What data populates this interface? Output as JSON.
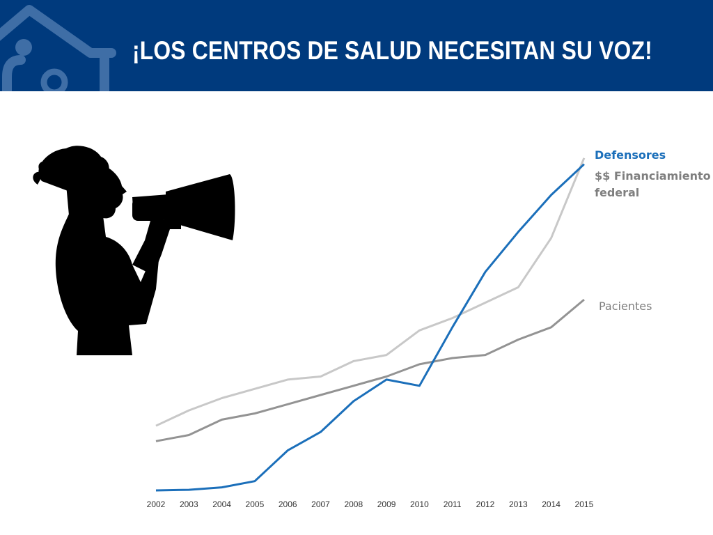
{
  "header": {
    "title": "¡LOS CENTROS DE SALUD NECESITAN SU VOZ!",
    "background_color": "#003a7d"
  },
  "illustration": {
    "icon": "person-with-megaphone-silhouette"
  },
  "chart_data": {
    "type": "line",
    "categories": [
      "2002",
      "2003",
      "2004",
      "2005",
      "2006",
      "2007",
      "2008",
      "2009",
      "2010",
      "2011",
      "2012",
      "2013",
      "2014",
      "2015"
    ],
    "series": [
      {
        "name": "$$ Financiamiento federal",
        "color": "#c8c8c8",
        "values": [
          21,
          26,
          30,
          33,
          36,
          37,
          42,
          44,
          52,
          56,
          61,
          66,
          82,
          108
        ]
      },
      {
        "name": "Pacientes",
        "color": "#939393",
        "values": [
          16,
          18,
          23,
          25,
          28,
          31,
          34,
          37,
          41,
          43,
          44,
          49,
          53,
          62
        ]
      },
      {
        "name": "Defensores",
        "color": "#1b6fba",
        "values": [
          0,
          0.2,
          1,
          3,
          13,
          19,
          29,
          36,
          34,
          53,
          71,
          84,
          96,
          106
        ]
      }
    ],
    "ylim": [
      0,
      110
    ],
    "grid": false,
    "legend": "right, at line ends"
  }
}
